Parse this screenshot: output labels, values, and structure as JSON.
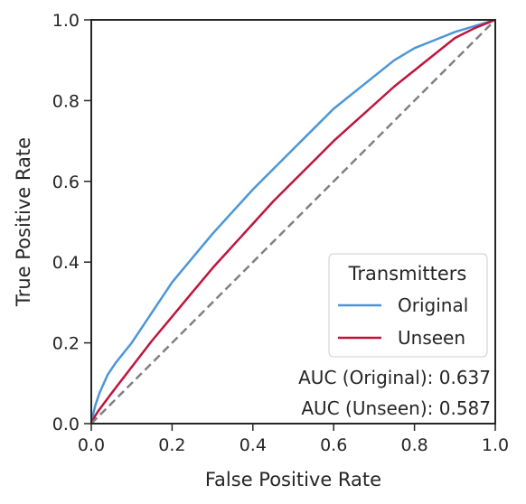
{
  "chart_data": {
    "type": "line",
    "title": "",
    "xlabel": "False Positive Rate",
    "ylabel": "True Positive Rate",
    "xlim": [
      0.0,
      1.0
    ],
    "ylim": [
      0.0,
      1.0
    ],
    "xticks": [
      "0.0",
      "0.2",
      "0.4",
      "0.6",
      "0.8",
      "1.0"
    ],
    "yticks": [
      "0.0",
      "0.2",
      "0.4",
      "0.6",
      "0.8",
      "1.0"
    ],
    "grid": false,
    "legend": {
      "title": "Transmitters",
      "placement": "lower-right"
    },
    "series": [
      {
        "name": "Original",
        "color": "#4c96d7",
        "x": [
          0,
          0.005,
          0.01,
          0.02,
          0.04,
          0.06,
          0.08,
          0.1,
          0.15,
          0.2,
          0.25,
          0.3,
          0.35,
          0.4,
          0.45,
          0.5,
          0.55,
          0.6,
          0.65,
          0.7,
          0.75,
          0.8,
          0.85,
          0.9,
          0.95,
          1.0
        ],
        "y": [
          0,
          0.025,
          0.045,
          0.075,
          0.12,
          0.15,
          0.175,
          0.2,
          0.275,
          0.35,
          0.41,
          0.47,
          0.525,
          0.58,
          0.63,
          0.68,
          0.73,
          0.78,
          0.82,
          0.86,
          0.9,
          0.93,
          0.95,
          0.97,
          0.985,
          1.0
        ]
      },
      {
        "name": "Unseen",
        "color": "#c0143c",
        "x": [
          0,
          0.01,
          0.02,
          0.05,
          0.1,
          0.15,
          0.2,
          0.25,
          0.3,
          0.35,
          0.4,
          0.45,
          0.5,
          0.55,
          0.6,
          0.65,
          0.7,
          0.75,
          0.8,
          0.85,
          0.9,
          0.95,
          1.0
        ],
        "y": [
          0,
          0.02,
          0.035,
          0.075,
          0.14,
          0.205,
          0.265,
          0.325,
          0.385,
          0.44,
          0.495,
          0.55,
          0.6,
          0.65,
          0.7,
          0.745,
          0.79,
          0.835,
          0.875,
          0.915,
          0.955,
          0.98,
          1.0
        ]
      },
      {
        "name": "",
        "style": "dashed",
        "color": "#808080",
        "x": [
          0,
          1
        ],
        "y": [
          0,
          1
        ]
      }
    ],
    "annotations": [
      "AUC (Original): 0.637",
      "AUC (Unseen): 0.587"
    ]
  }
}
